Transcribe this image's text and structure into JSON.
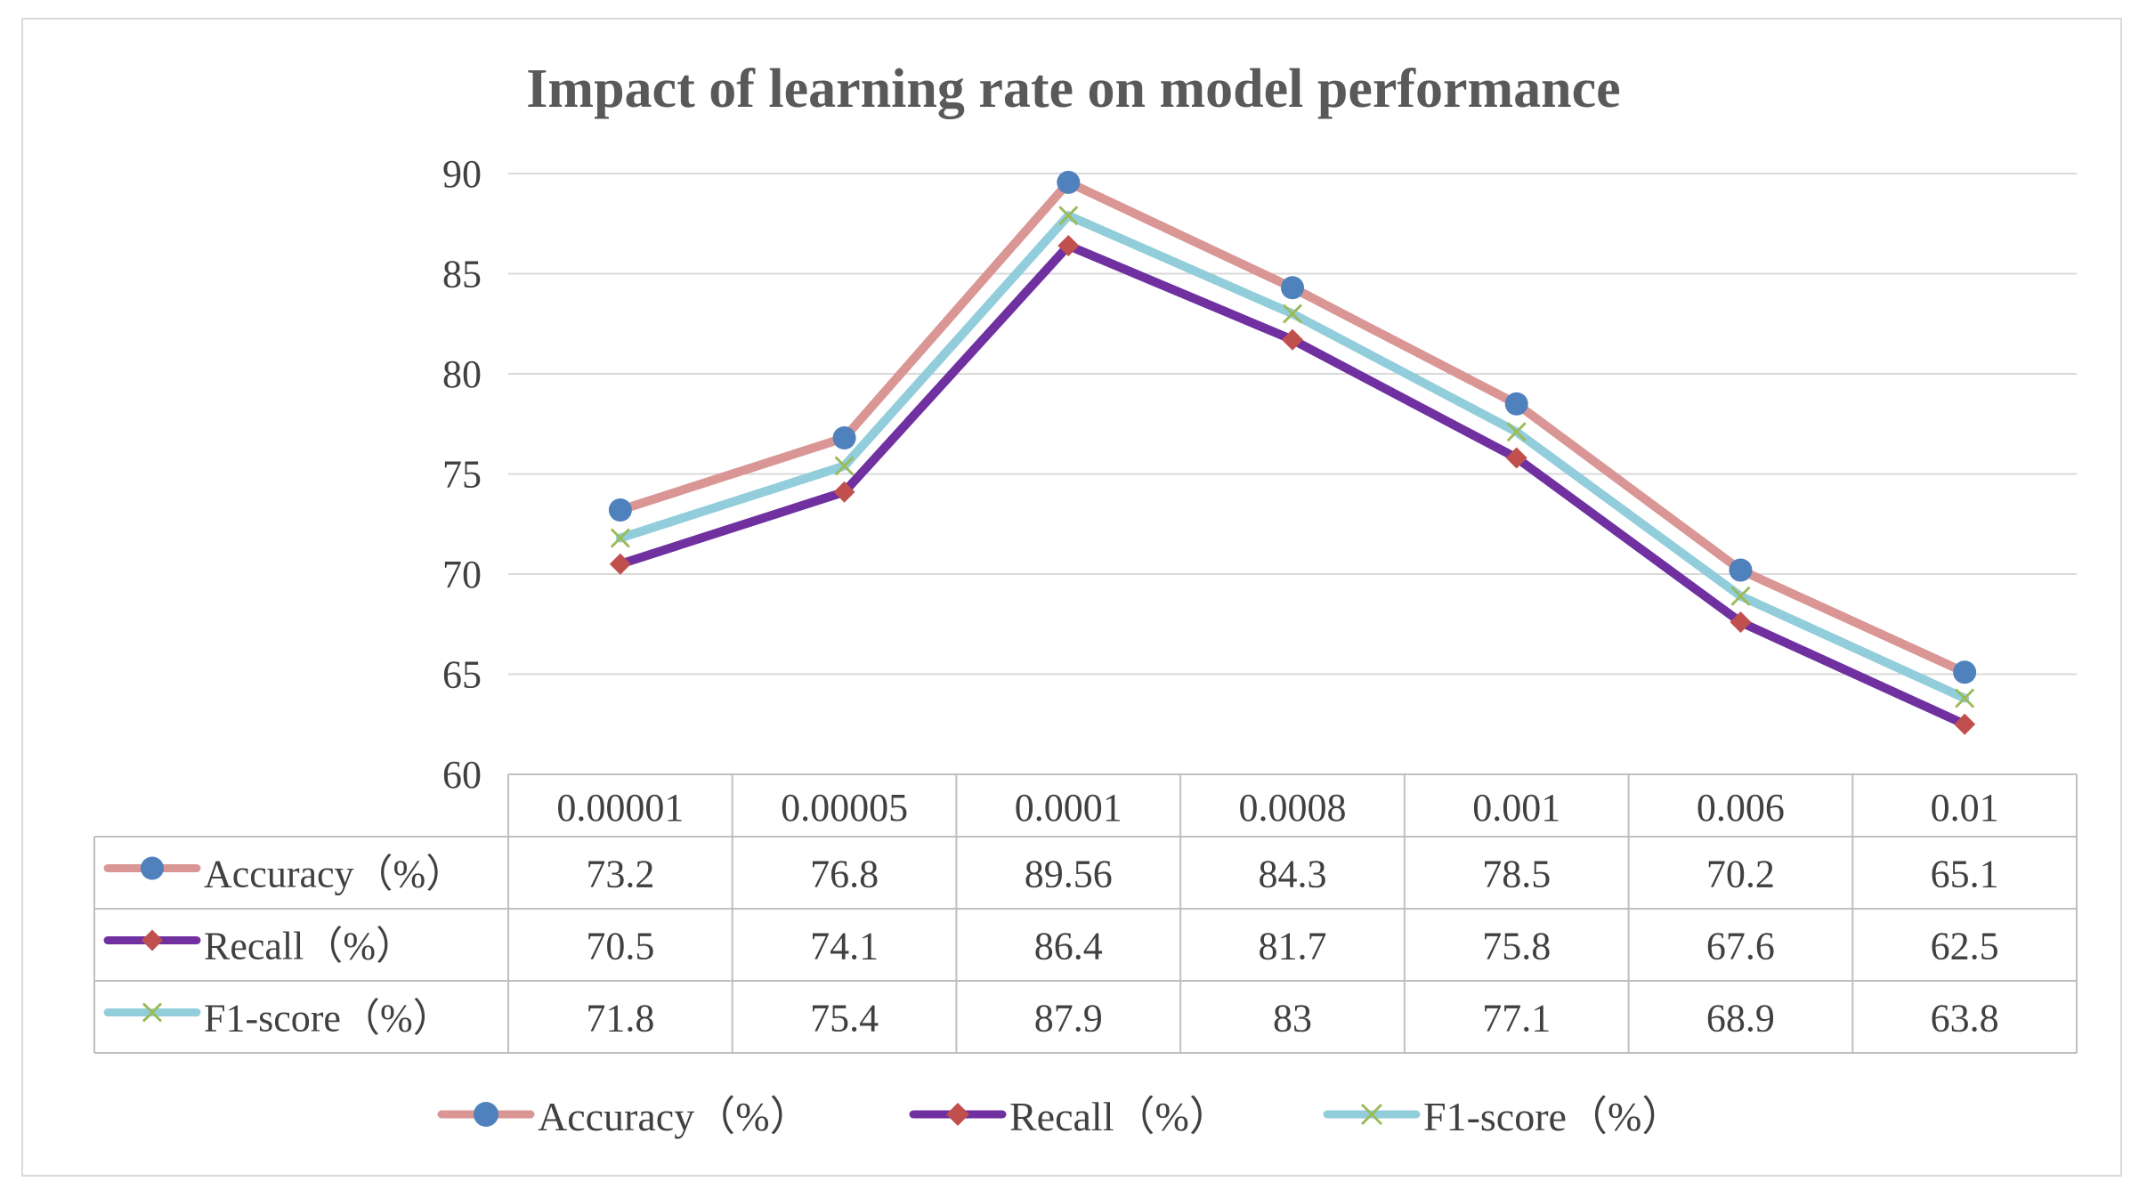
{
  "chart_data": {
    "type": "line",
    "title": "Impact of learning rate on model performance",
    "categories": [
      "0.00001",
      "0.00005",
      "0.0001",
      "0.0008",
      "0.001",
      "0.006",
      "0.01"
    ],
    "ylim": [
      60,
      90
    ],
    "yticks": [
      "60",
      "65",
      "70",
      "75",
      "80",
      "85",
      "90"
    ],
    "grid": true,
    "legend_position": "bottom",
    "data_table": true,
    "series": [
      {
        "name": "Accuracy（%）",
        "values": [
          73.2,
          76.8,
          89.56,
          84.3,
          78.5,
          70.2,
          65.1
        ],
        "labels": [
          "73.2",
          "76.8",
          "89.56",
          "84.3",
          "78.5",
          "70.2",
          "65.1"
        ],
        "color": "#d99694",
        "marker": "circle",
        "marker_color": "#4f81bd"
      },
      {
        "name": "Recall（%）",
        "values": [
          70.5,
          74.1,
          86.4,
          81.7,
          75.8,
          67.6,
          62.5
        ],
        "labels": [
          "70.5",
          "74.1",
          "86.4",
          "81.7",
          "75.8",
          "67.6",
          "62.5"
        ],
        "color": "#7030a0",
        "marker": "diamond",
        "marker_color": "#c0504d"
      },
      {
        "name": "F1-score（%）",
        "values": [
          71.8,
          75.4,
          87.9,
          83,
          77.1,
          68.9,
          63.8
        ],
        "labels": [
          "71.8",
          "75.4",
          "87.9",
          "83",
          "77.1",
          "68.9",
          "63.8"
        ],
        "color": "#92cddc",
        "marker": "x",
        "marker_color": "#9bbb59"
      }
    ]
  }
}
